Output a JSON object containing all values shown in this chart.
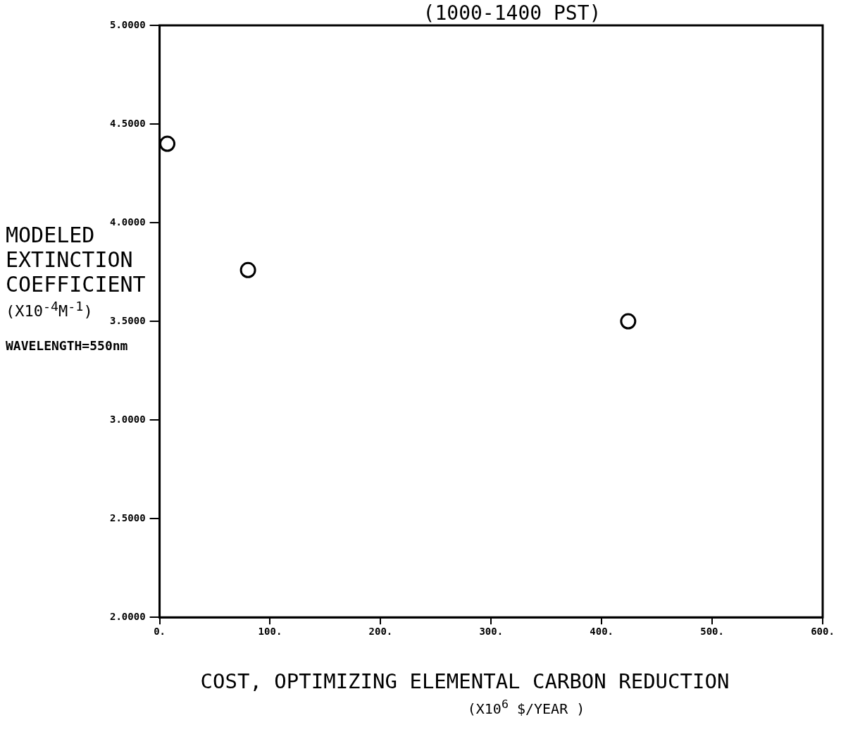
{
  "chart_data": {
    "type": "scatter",
    "title": "(1000-1400 PST)",
    "xlabel": "COST, OPTIMIZING ELEMENTAL CARBON REDUCTION",
    "ylabel": "MODELED EXTINCTION COEFFICIENT",
    "annotations": [
      "(X10$^{-4}$M$^{-1}$)",
      "WAVELENGTH=550nm",
      "(X10$^{6}$ $/YEAR )"
    ],
    "x": [
      7,
      80,
      424
    ],
    "series": [
      {
        "color": "#000000",
        "values": [
          4.4,
          3.76,
          3.5
        ]
      }
    ],
    "xlim": [
      0,
      600
    ],
    "xticks": [
      {
        "value": 0,
        "label": "0."
      },
      {
        "value": 100,
        "label": "100."
      },
      {
        "value": 200,
        "label": "200."
      },
      {
        "value": 300,
        "label": "300."
      },
      {
        "value": 400,
        "label": "400."
      },
      {
        "value": 500,
        "label": "500."
      },
      {
        "value": 600,
        "label": "600."
      }
    ],
    "ylim": [
      2,
      5
    ],
    "yticks": [
      {
        "value": 2,
        "label": "2.0000"
      },
      {
        "value": 2.5,
        "label": "2.5000"
      },
      {
        "value": 3,
        "label": "3.0000"
      },
      {
        "value": 3.5,
        "label": "3.5000"
      },
      {
        "value": 4,
        "label": "4.0000"
      },
      {
        "value": 4.5,
        "label": "4.5000"
      },
      {
        "value": 5,
        "label": "5.0000"
      }
    ],
    "grid": false,
    "legend": false,
    "marker": "circle"
  }
}
